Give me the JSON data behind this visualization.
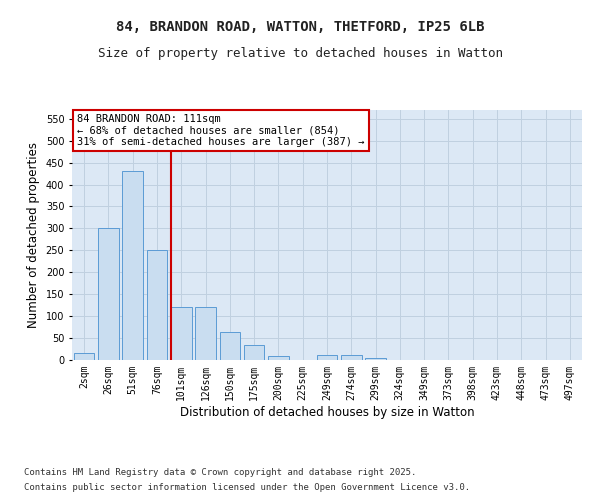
{
  "title_line1": "84, BRANDON ROAD, WATTON, THETFORD, IP25 6LB",
  "title_line2": "Size of property relative to detached houses in Watton",
  "xlabel": "Distribution of detached houses by size in Watton",
  "ylabel": "Number of detached properties",
  "categories": [
    "2sqm",
    "26sqm",
    "51sqm",
    "76sqm",
    "101sqm",
    "126sqm",
    "150sqm",
    "175sqm",
    "200sqm",
    "225sqm",
    "249sqm",
    "274sqm",
    "299sqm",
    "324sqm",
    "349sqm",
    "373sqm",
    "398sqm",
    "423sqm",
    "448sqm",
    "473sqm",
    "497sqm"
  ],
  "values": [
    15,
    300,
    430,
    250,
    120,
    120,
    63,
    35,
    10,
    0,
    11,
    11,
    5,
    1,
    0,
    0,
    1,
    0,
    0,
    0,
    1
  ],
  "bar_color": "#c9ddf0",
  "bar_edge_color": "#5b9bd5",
  "grid_color": "#c0d0e0",
  "vline_pos": 3.575,
  "vline_color": "#cc0000",
  "annotation_text": "84 BRANDON ROAD: 111sqm\n← 68% of detached houses are smaller (854)\n31% of semi-detached houses are larger (387) →",
  "annotation_box_color": "#cc0000",
  "annotation_text_color": "#000000",
  "footer_line1": "Contains HM Land Registry data © Crown copyright and database right 2025.",
  "footer_line2": "Contains public sector information licensed under the Open Government Licence v3.0.",
  "ylim": [
    0,
    570
  ],
  "yticks": [
    0,
    50,
    100,
    150,
    200,
    250,
    300,
    350,
    400,
    450,
    500,
    550
  ],
  "background_color": "#dce8f5",
  "fig_background_color": "#ffffff",
  "title_fontsize": 10,
  "subtitle_fontsize": 9,
  "tick_fontsize": 7,
  "label_fontsize": 8.5,
  "footer_fontsize": 6.5,
  "annotation_fontsize": 7.5
}
